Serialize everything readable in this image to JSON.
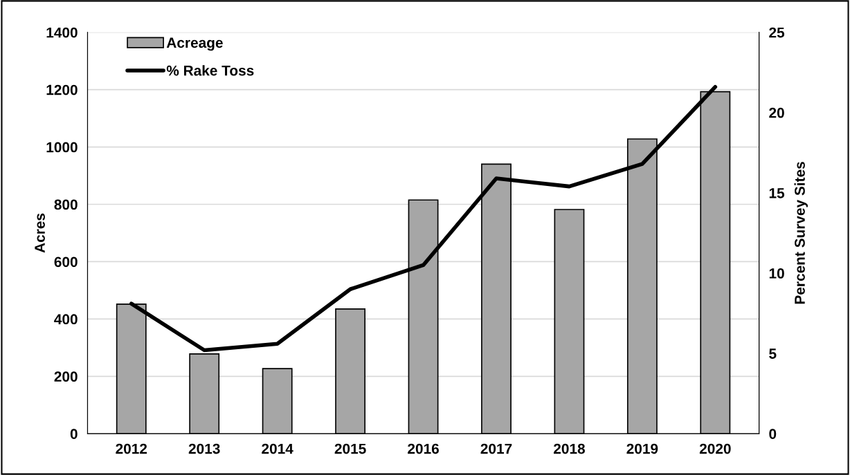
{
  "chart_data": {
    "type": "bar",
    "categories": [
      "2012",
      "2013",
      "2014",
      "2015",
      "2016",
      "2017",
      "2018",
      "2019",
      "2020"
    ],
    "series": [
      {
        "name": "Acreage",
        "color": "#a6a6a6",
        "values": [
          452,
          278,
          227,
          435,
          815,
          940,
          782,
          1028,
          1193
        ]
      },
      {
        "name": "% Rake Toss",
        "type": "line",
        "axis": "y2",
        "color": "#000000",
        "values": [
          8.1,
          5.2,
          5.6,
          9.0,
          10.5,
          15.9,
          15.4,
          16.8,
          21.6
        ]
      }
    ],
    "ylabel": "Acres",
    "y2label": "Percent Survey Sites",
    "ylim": [
      0,
      1400
    ],
    "yticks": [
      0,
      200,
      400,
      600,
      800,
      1000,
      1200,
      1400
    ],
    "y2lim": [
      0,
      25
    ],
    "y2ticks": [
      0,
      5,
      10,
      15,
      20,
      25
    ],
    "grid": "y",
    "legend": "top left",
    "marker": "none",
    "line_style": "solid"
  }
}
